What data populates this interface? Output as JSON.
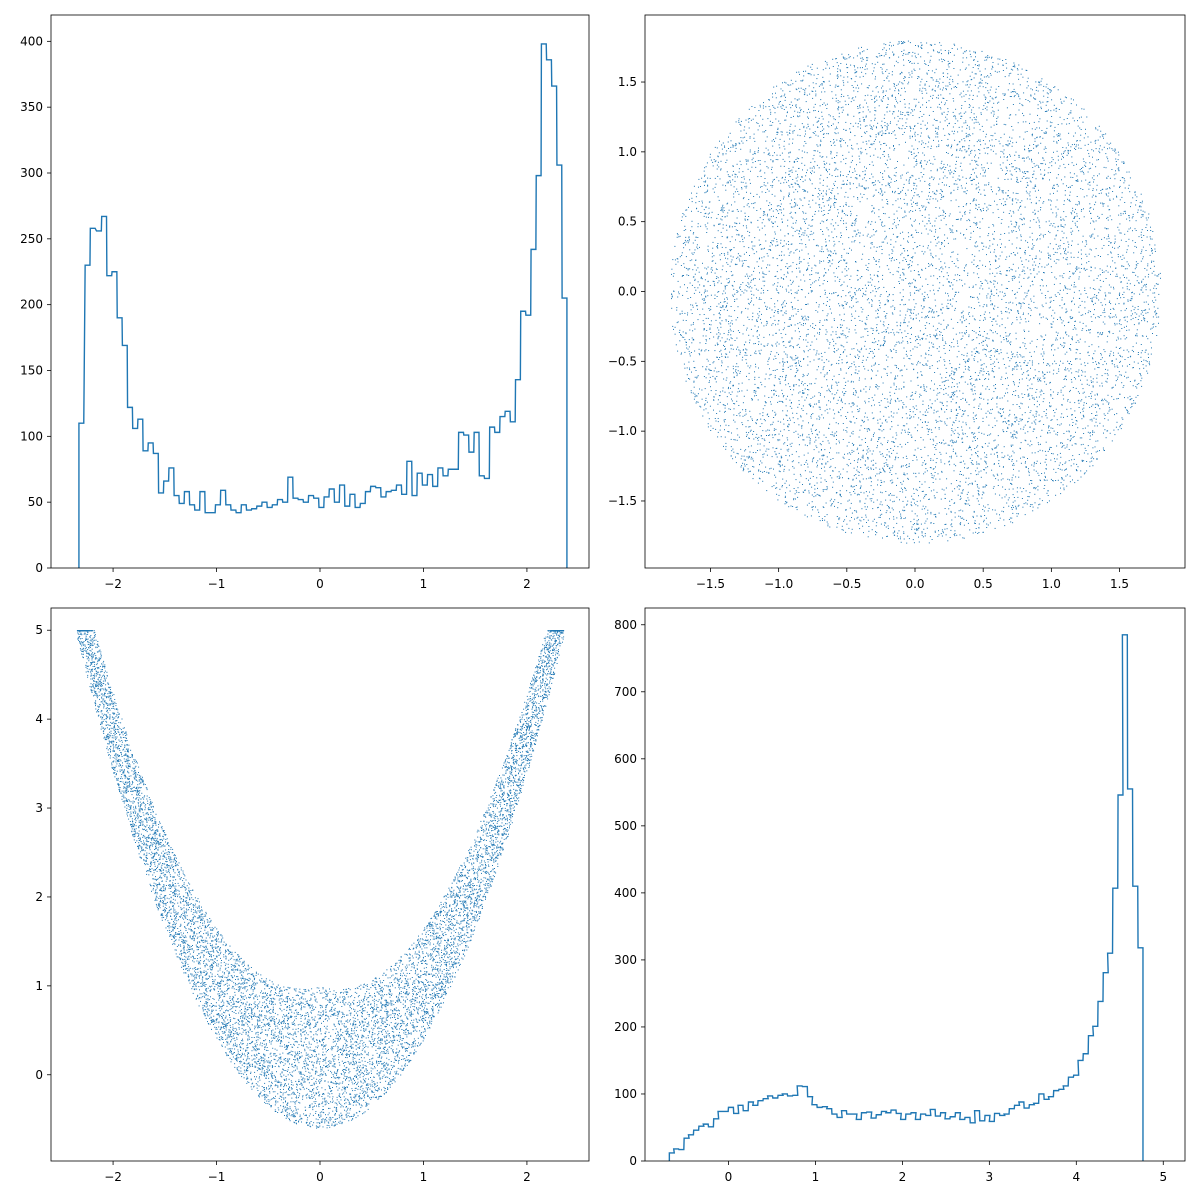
{
  "accent_color": "#1f77b4",
  "chart_data": [
    {
      "type": "histogram",
      "panel": "top-left",
      "bin_width": 0.0466,
      "bins": [
        [
          -2.33,
          110
        ],
        [
          -2.27,
          230
        ],
        [
          -2.22,
          258
        ],
        [
          -2.16,
          256
        ],
        [
          -2.11,
          267
        ],
        [
          -2.06,
          222
        ],
        [
          -2.01,
          225
        ],
        [
          -1.96,
          190
        ],
        [
          -1.91,
          169
        ],
        [
          -1.86,
          122
        ],
        [
          -1.81,
          106
        ],
        [
          -1.76,
          113
        ],
        [
          -1.71,
          89
        ],
        [
          -1.66,
          95
        ],
        [
          -1.61,
          87
        ],
        [
          -1.56,
          57
        ],
        [
          -1.51,
          66
        ],
        [
          -1.46,
          76
        ],
        [
          -1.41,
          55
        ],
        [
          -1.36,
          49
        ],
        [
          -1.31,
          58
        ],
        [
          -1.26,
          48
        ],
        [
          -1.21,
          44
        ],
        [
          -1.16,
          58
        ],
        [
          -1.11,
          42
        ],
        [
          -1.06,
          42
        ],
        [
          -1.01,
          48
        ],
        [
          -0.96,
          59
        ],
        [
          -0.91,
          48
        ],
        [
          -0.86,
          44
        ],
        [
          -0.81,
          42
        ],
        [
          -0.76,
          48
        ],
        [
          -0.71,
          44
        ],
        [
          -0.66,
          45
        ],
        [
          -0.61,
          47
        ],
        [
          -0.56,
          50
        ],
        [
          -0.51,
          46
        ],
        [
          -0.46,
          48
        ],
        [
          -0.41,
          52
        ],
        [
          -0.36,
          50
        ],
        [
          -0.31,
          69
        ],
        [
          -0.26,
          53
        ],
        [
          -0.21,
          52
        ],
        [
          -0.16,
          50
        ],
        [
          -0.11,
          55
        ],
        [
          -0.06,
          53
        ],
        [
          -0.01,
          46
        ],
        [
          0.04,
          54
        ],
        [
          0.09,
          60
        ],
        [
          0.14,
          50
        ],
        [
          0.19,
          63
        ],
        [
          0.24,
          47
        ],
        [
          0.29,
          56
        ],
        [
          0.34,
          46
        ],
        [
          0.39,
          49
        ],
        [
          0.44,
          58
        ],
        [
          0.49,
          62
        ],
        [
          0.54,
          61
        ],
        [
          0.59,
          54
        ],
        [
          0.64,
          58
        ],
        [
          0.69,
          59
        ],
        [
          0.74,
          63
        ],
        [
          0.79,
          56
        ],
        [
          0.84,
          81
        ],
        [
          0.89,
          55
        ],
        [
          0.94,
          72
        ],
        [
          0.99,
          63
        ],
        [
          1.04,
          71
        ],
        [
          1.09,
          62
        ],
        [
          1.14,
          76
        ],
        [
          1.19,
          70
        ],
        [
          1.24,
          75
        ],
        [
          1.29,
          75
        ],
        [
          1.34,
          103
        ],
        [
          1.39,
          101
        ],
        [
          1.44,
          88
        ],
        [
          1.49,
          103
        ],
        [
          1.54,
          70
        ],
        [
          1.59,
          68
        ],
        [
          1.64,
          107
        ],
        [
          1.69,
          103
        ],
        [
          1.74,
          115
        ],
        [
          1.79,
          119
        ],
        [
          1.84,
          111
        ],
        [
          1.89,
          143
        ],
        [
          1.94,
          195
        ],
        [
          1.99,
          192
        ],
        [
          2.04,
          242
        ],
        [
          2.09,
          298
        ],
        [
          2.14,
          398
        ],
        [
          2.19,
          386
        ],
        [
          2.24,
          366
        ],
        [
          2.29,
          306
        ],
        [
          2.34,
          205
        ]
      ],
      "xlim": [
        -2.6,
        2.6
      ],
      "ylim": [
        0,
        420
      ],
      "xticks": [
        -2,
        -1,
        0,
        1,
        2
      ],
      "yticks": [
        0,
        50,
        100,
        150,
        200,
        250,
        300,
        350,
        400
      ],
      "xtick_labels": [
        "−2",
        "−1",
        "0",
        "1",
        "2"
      ],
      "ytick_labels": [
        "0",
        "50",
        "100",
        "150",
        "200",
        "250",
        "300",
        "350",
        "400"
      ],
      "grid": false
    },
    {
      "type": "scatter",
      "panel": "top-right",
      "description": "dense point cloud filling a disk of radius 1.8 centred at the origin (~10000 points)",
      "shape": "disk",
      "center": [
        0,
        0
      ],
      "radius": 1.8,
      "n_points": 10000,
      "xlim": [
        -1.98,
        1.98
      ],
      "ylim": [
        -1.98,
        1.98
      ],
      "xticks": [
        -1.5,
        -1.0,
        -0.5,
        0.0,
        0.5,
        1.0,
        1.5
      ],
      "yticks": [
        -1.5,
        -1.0,
        -0.5,
        0.0,
        0.5,
        1.0,
        1.5
      ],
      "xtick_labels": [
        "−1.5",
        "−1.0",
        "−0.5",
        "0.0",
        "0.5",
        "1.0",
        "1.5"
      ],
      "ytick_labels": [
        "−1.5",
        "−1.0",
        "−0.5",
        "0.0",
        "0.5",
        "1.0",
        "1.5"
      ],
      "grid": false
    },
    {
      "type": "scatter",
      "panel": "bottom-left",
      "description": "points x = r·cos(t), y = x² + r·sin(t) over the same disk, forming a parabola-shaped band",
      "shape": "parabolic-band",
      "transform": "x = x0, y = x0^2 + y0 over a disk of radius 1.8 (~10000 points)",
      "n_points": 10000,
      "xlim": [
        -2.6,
        2.6
      ],
      "ylim": [
        -0.97,
        5.25
      ],
      "xticks": [
        -2,
        -1,
        0,
        1,
        2
      ],
      "yticks": [
        0,
        1,
        2,
        3,
        4,
        5
      ],
      "xtick_labels": [
        "−2",
        "−1",
        "0",
        "1",
        "2"
      ],
      "ytick_labels": [
        "0",
        "1",
        "2",
        "3",
        "4",
        "5"
      ],
      "grid": false
    },
    {
      "type": "histogram",
      "panel": "bottom-right",
      "bin_width": 0.0566,
      "bins": [
        [
          -0.68,
          12
        ],
        [
          -0.63,
          18
        ],
        [
          -0.57,
          17
        ],
        [
          -0.51,
          34
        ],
        [
          -0.46,
          39
        ],
        [
          -0.4,
          46
        ],
        [
          -0.34,
          52
        ],
        [
          -0.29,
          55
        ],
        [
          -0.23,
          51
        ],
        [
          -0.17,
          63
        ],
        [
          -0.12,
          74
        ],
        [
          -0.06,
          74
        ],
        [
          0.0,
          80
        ],
        [
          0.06,
          71
        ],
        [
          0.11,
          83
        ],
        [
          0.17,
          75
        ],
        [
          0.23,
          88
        ],
        [
          0.28,
          83
        ],
        [
          0.34,
          90
        ],
        [
          0.4,
          93
        ],
        [
          0.45,
          97
        ],
        [
          0.51,
          94
        ],
        [
          0.57,
          98
        ],
        [
          0.62,
          100
        ],
        [
          0.68,
          97
        ],
        [
          0.74,
          98
        ],
        [
          0.79,
          112
        ],
        [
          0.85,
          111
        ],
        [
          0.91,
          96
        ],
        [
          0.96,
          84
        ],
        [
          1.02,
          80
        ],
        [
          1.08,
          81
        ],
        [
          1.13,
          78
        ],
        [
          1.19,
          70
        ],
        [
          1.25,
          65
        ],
        [
          1.3,
          75
        ],
        [
          1.36,
          70
        ],
        [
          1.42,
          70
        ],
        [
          1.47,
          62
        ],
        [
          1.53,
          72
        ],
        [
          1.59,
          73
        ],
        [
          1.64,
          64
        ],
        [
          1.7,
          69
        ],
        [
          1.76,
          74
        ],
        [
          1.81,
          72
        ],
        [
          1.87,
          76
        ],
        [
          1.93,
          71
        ],
        [
          1.98,
          62
        ],
        [
          2.04,
          70
        ],
        [
          2.1,
          72
        ],
        [
          2.15,
          62
        ],
        [
          2.21,
          70
        ],
        [
          2.27,
          68
        ],
        [
          2.32,
          77
        ],
        [
          2.38,
          67
        ],
        [
          2.44,
          72
        ],
        [
          2.49,
          63
        ],
        [
          2.55,
          66
        ],
        [
          2.61,
          72
        ],
        [
          2.66,
          62
        ],
        [
          2.72,
          65
        ],
        [
          2.78,
          57
        ],
        [
          2.83,
          75
        ],
        [
          2.89,
          60
        ],
        [
          2.95,
          68
        ],
        [
          3.0,
          59
        ],
        [
          3.06,
          71
        ],
        [
          3.12,
          68
        ],
        [
          3.17,
          70
        ],
        [
          3.23,
          78
        ],
        [
          3.29,
          83
        ],
        [
          3.34,
          88
        ],
        [
          3.4,
          79
        ],
        [
          3.46,
          84
        ],
        [
          3.51,
          86
        ],
        [
          3.57,
          100
        ],
        [
          3.63,
          92
        ],
        [
          3.68,
          96
        ],
        [
          3.74,
          105
        ],
        [
          3.8,
          107
        ],
        [
          3.85,
          112
        ],
        [
          3.91,
          125
        ],
        [
          3.97,
          128
        ],
        [
          4.02,
          150
        ],
        [
          4.08,
          160
        ],
        [
          4.14,
          187
        ],
        [
          4.19,
          201
        ],
        [
          4.25,
          238
        ],
        [
          4.31,
          281
        ],
        [
          4.36,
          310
        ],
        [
          4.42,
          407
        ],
        [
          4.48,
          546
        ],
        [
          4.53,
          785
        ],
        [
          4.59,
          555
        ],
        [
          4.65,
          410
        ],
        [
          4.71,
          318
        ]
      ],
      "xlim": [
        -0.96,
        5.25
      ],
      "ylim": [
        0,
        825
      ],
      "xticks": [
        0,
        1,
        2,
        3,
        4,
        5
      ],
      "yticks": [
        0,
        100,
        200,
        300,
        400,
        500,
        600,
        700,
        800
      ],
      "xtick_labels": [
        "0",
        "1",
        "2",
        "3",
        "4",
        "5"
      ],
      "ytick_labels": [
        "0",
        "100",
        "200",
        "300",
        "400",
        "500",
        "600",
        "700",
        "800"
      ],
      "grid": false
    }
  ]
}
